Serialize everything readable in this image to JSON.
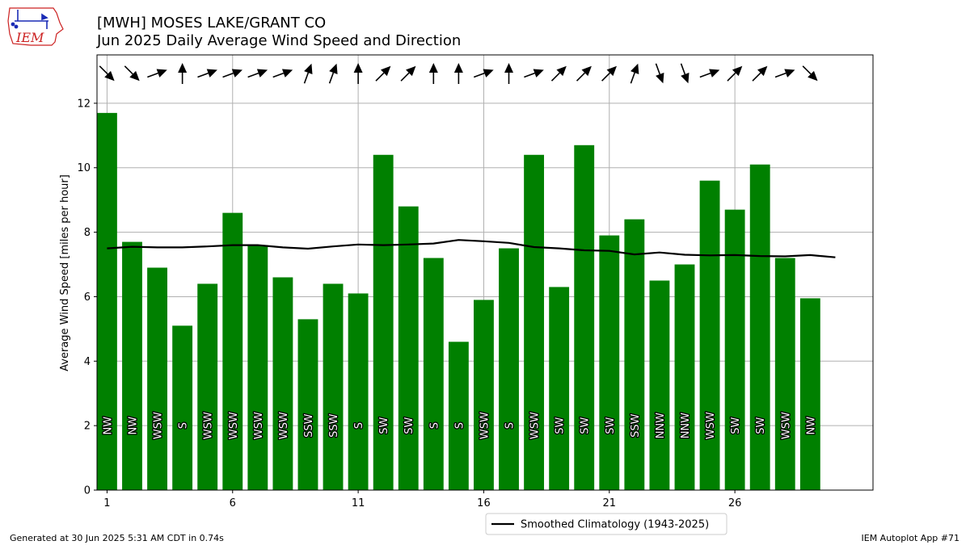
{
  "header": {
    "title_line1": "[MWH] MOSES LAKE/GRANT CO",
    "title_line2": "Jun 2025 Daily Average Wind Speed and Direction"
  },
  "logo_text": "IEM",
  "footer": {
    "generated": "Generated at 30 Jun 2025 5:31 AM CDT in 0.74s",
    "app": "IEM Autoplot App #71"
  },
  "colors": {
    "bar": "#008000",
    "climo": "#000000",
    "grid": "#b0b0b0",
    "logo_red": "#cc2222",
    "logo_blue": "#1a2bb5"
  },
  "chart_data": {
    "type": "bar",
    "title": "[MWH] MOSES LAKE/GRANT CO — Jun 2025 Daily Average Wind Speed and Direction",
    "xlabel": "",
    "ylabel": "Average Wind Speed [miles per hour]",
    "xlim": [
      0.6,
      31.5
    ],
    "ylim": [
      0,
      13.5
    ],
    "grid": true,
    "legend_position": "bottom-center",
    "x_ticks": [
      1,
      6,
      11,
      16,
      21,
      26
    ],
    "y_ticks": [
      0,
      2,
      4,
      6,
      8,
      10,
      12
    ],
    "days": [
      1,
      2,
      3,
      4,
      5,
      6,
      7,
      8,
      9,
      10,
      11,
      12,
      13,
      14,
      15,
      16,
      17,
      18,
      19,
      20,
      21,
      22,
      23,
      24,
      25,
      26,
      27,
      28,
      29
    ],
    "values": [
      11.7,
      7.7,
      6.9,
      5.1,
      6.4,
      8.6,
      7.6,
      6.6,
      5.3,
      6.4,
      6.1,
      10.4,
      8.8,
      7.2,
      4.6,
      5.9,
      7.5,
      10.4,
      6.3,
      10.7,
      7.9,
      8.4,
      6.5,
      7.0,
      9.6,
      8.7,
      10.1,
      7.2,
      5.95
    ],
    "directions": [
      "NW",
      "NW",
      "WSW",
      "S",
      "WSW",
      "WSW",
      "WSW",
      "WSW",
      "SSW",
      "SSW",
      "S",
      "SW",
      "SW",
      "S",
      "S",
      "WSW",
      "S",
      "WSW",
      "SW",
      "SW",
      "SW",
      "SSW",
      "NNW",
      "NNW",
      "WSW",
      "SW",
      "SW",
      "WSW",
      "NW"
    ],
    "arrow_angles_deg": [
      135,
      135,
      70,
      0,
      70,
      70,
      70,
      70,
      20,
      20,
      0,
      45,
      45,
      0,
      0,
      70,
      0,
      70,
      45,
      45,
      45,
      20,
      160,
      160,
      70,
      45,
      45,
      70,
      135
    ],
    "series": [
      {
        "name": "Smoothed Climatology (1943-2025)",
        "type": "line",
        "x": [
          1,
          2,
          3,
          4,
          5,
          6,
          7,
          8,
          9,
          10,
          11,
          12,
          13,
          14,
          15,
          16,
          17,
          18,
          19,
          20,
          21,
          22,
          23,
          24,
          25,
          26,
          27,
          28,
          29,
          30
        ],
        "values": [
          7.5,
          7.55,
          7.53,
          7.53,
          7.56,
          7.6,
          7.6,
          7.53,
          7.49,
          7.56,
          7.62,
          7.6,
          7.62,
          7.65,
          7.76,
          7.72,
          7.67,
          7.54,
          7.5,
          7.44,
          7.42,
          7.31,
          7.37,
          7.3,
          7.28,
          7.29,
          7.26,
          7.25,
          7.29,
          7.22
        ]
      }
    ]
  }
}
